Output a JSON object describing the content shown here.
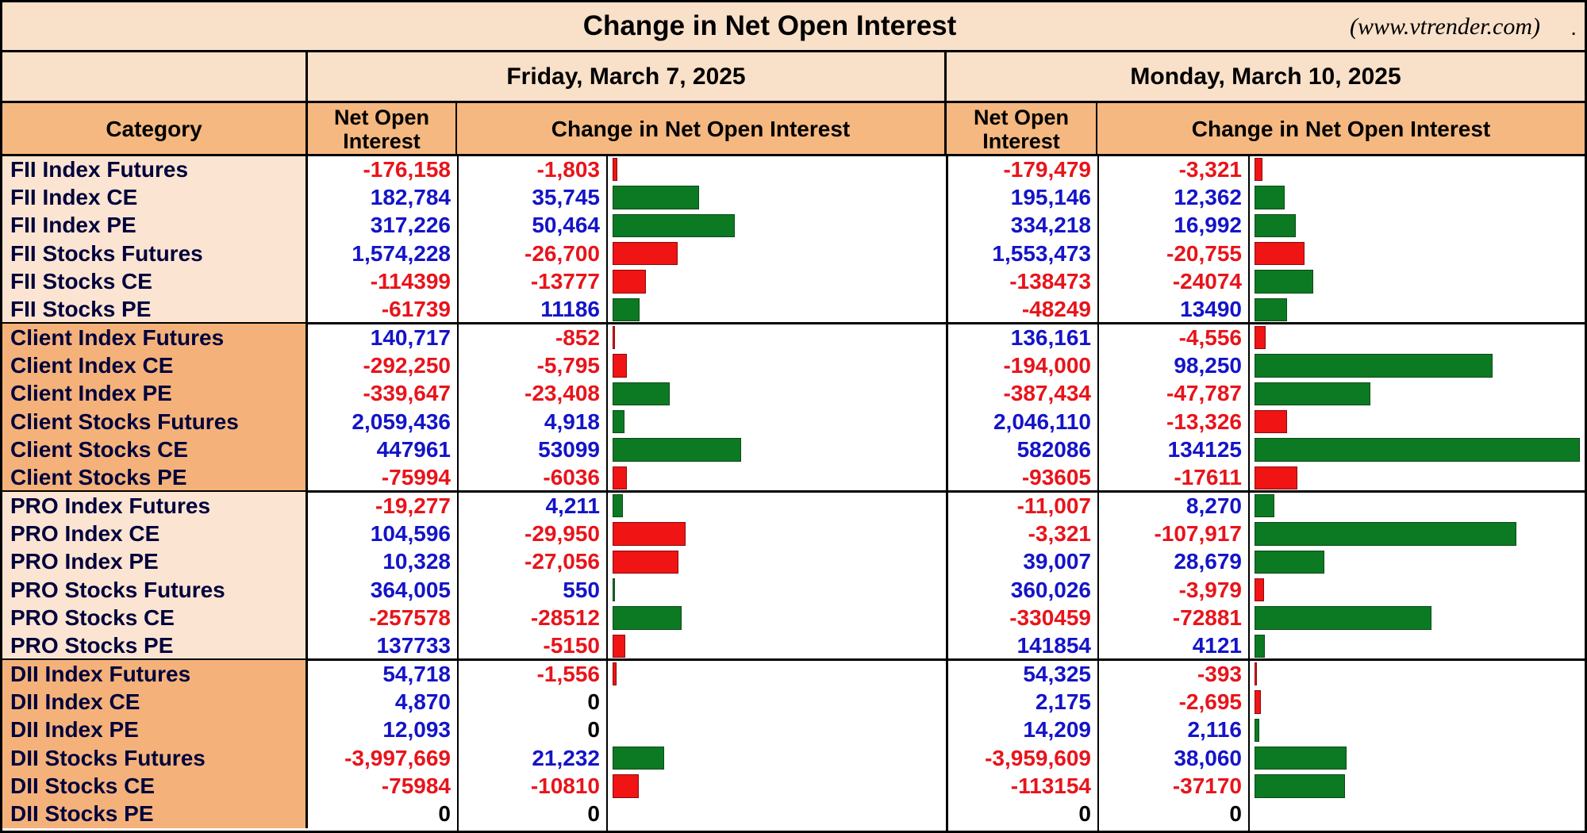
{
  "title": "Change in Net Open Interest",
  "website": "(www.vtrender.com)",
  "colors": {
    "header_bg": "#f9e0c8",
    "subheader_bg": "#f5b880",
    "group_light_bg": "#fbe5d2",
    "group_dark_bg": "#f4b27a",
    "negative": "#e8141b",
    "positive": "#1414c8",
    "bar_increase": "#0b7a22",
    "bar_decrease": "#f01414"
  },
  "headers": {
    "category": "Category",
    "net_oi": "Net Open Interest",
    "change": "Change in Net Open Interest"
  },
  "dates": [
    "Friday, March 7, 2025",
    "Monday, March 10, 2025"
  ],
  "groups": [
    {
      "name": "FII",
      "shade": "light",
      "rows": [
        {
          "category": "FII Index Futures",
          "fri_oi": "-176,158",
          "fri_chg": "-1,803",
          "mon_oi": "-179,479",
          "mon_chg": "-3,321"
        },
        {
          "category": "FII Index CE",
          "fri_oi": "182,784",
          "fri_chg": "35,745",
          "mon_oi": "195,146",
          "mon_chg": "12,362"
        },
        {
          "category": "FII Index PE",
          "fri_oi": "317,226",
          "fri_chg": "50,464",
          "mon_oi": "334,218",
          "mon_chg": "16,992"
        },
        {
          "category": "FII Stocks Futures",
          "fri_oi": "1,574,228",
          "fri_chg": "-26,700",
          "mon_oi": "1,553,473",
          "mon_chg": "-20,755"
        },
        {
          "category": "FII Stocks CE",
          "fri_oi": "-114399",
          "fri_chg": "-13777",
          "mon_oi": "-138473",
          "mon_chg": "-24074"
        },
        {
          "category": "FII Stocks PE",
          "fri_oi": "-61739",
          "fri_chg": "11186",
          "mon_oi": "-48249",
          "mon_chg": "13490"
        }
      ]
    },
    {
      "name": "Client",
      "shade": "dark",
      "rows": [
        {
          "category": "Client Index Futures",
          "fri_oi": "140,717",
          "fri_chg": "-852",
          "mon_oi": "136,161",
          "mon_chg": "-4,556"
        },
        {
          "category": "Client Index CE",
          "fri_oi": "-292,250",
          "fri_chg": "-5,795",
          "mon_oi": "-194,000",
          "mon_chg": "98,250"
        },
        {
          "category": "Client Index PE",
          "fri_oi": "-339,647",
          "fri_chg": "-23,408",
          "mon_oi": "-387,434",
          "mon_chg": "-47,787"
        },
        {
          "category": "Client Stocks Futures",
          "fri_oi": "2,059,436",
          "fri_chg": "4,918",
          "mon_oi": "2,046,110",
          "mon_chg": "-13,326"
        },
        {
          "category": "Client Stocks CE",
          "fri_oi": "447961",
          "fri_chg": "53099",
          "mon_oi": "582086",
          "mon_chg": "134125"
        },
        {
          "category": "Client Stocks PE",
          "fri_oi": "-75994",
          "fri_chg": "-6036",
          "mon_oi": "-93605",
          "mon_chg": "-17611"
        }
      ]
    },
    {
      "name": "PRO",
      "shade": "light",
      "rows": [
        {
          "category": "PRO Index Futures",
          "fri_oi": "-19,277",
          "fri_chg": "4,211",
          "mon_oi": "-11,007",
          "mon_chg": "8,270"
        },
        {
          "category": "PRO Index CE",
          "fri_oi": "104,596",
          "fri_chg": "-29,950",
          "mon_oi": "-3,321",
          "mon_chg": "-107,917"
        },
        {
          "category": "PRO Index PE",
          "fri_oi": "10,328",
          "fri_chg": "-27,056",
          "mon_oi": "39,007",
          "mon_chg": "28,679"
        },
        {
          "category": "PRO Stocks Futures",
          "fri_oi": "364,005",
          "fri_chg": "550",
          "mon_oi": "360,026",
          "mon_chg": "-3,979"
        },
        {
          "category": "PRO Stocks CE",
          "fri_oi": "-257578",
          "fri_chg": "-28512",
          "mon_oi": "-330459",
          "mon_chg": "-72881"
        },
        {
          "category": "PRO Stocks PE",
          "fri_oi": "137733",
          "fri_chg": "-5150",
          "mon_oi": "141854",
          "mon_chg": "4121"
        }
      ]
    },
    {
      "name": "DII",
      "shade": "dark",
      "rows": [
        {
          "category": "DII Index Futures",
          "fri_oi": "54,718",
          "fri_chg": "-1,556",
          "mon_oi": "54,325",
          "mon_chg": "-393"
        },
        {
          "category": "DII Index CE",
          "fri_oi": "4,870",
          "fri_chg": "0",
          "mon_oi": "2,175",
          "mon_chg": "-2,695"
        },
        {
          "category": "DII Index PE",
          "fri_oi": "12,093",
          "fri_chg": "0",
          "mon_oi": "14,209",
          "mon_chg": "2,116"
        },
        {
          "category": "DII Stocks Futures",
          "fri_oi": "-3,997,669",
          "fri_chg": "21,232",
          "mon_oi": "-3,959,609",
          "mon_chg": "38,060"
        },
        {
          "category": "DII Stocks CE",
          "fri_oi": "-75984",
          "fri_chg": "-10810",
          "mon_oi": "-113154",
          "mon_chg": "-37170"
        },
        {
          "category": "DII Stocks PE",
          "fri_oi": "0",
          "fri_chg": "0",
          "mon_oi": "0",
          "mon_chg": "0"
        }
      ]
    }
  ]
}
